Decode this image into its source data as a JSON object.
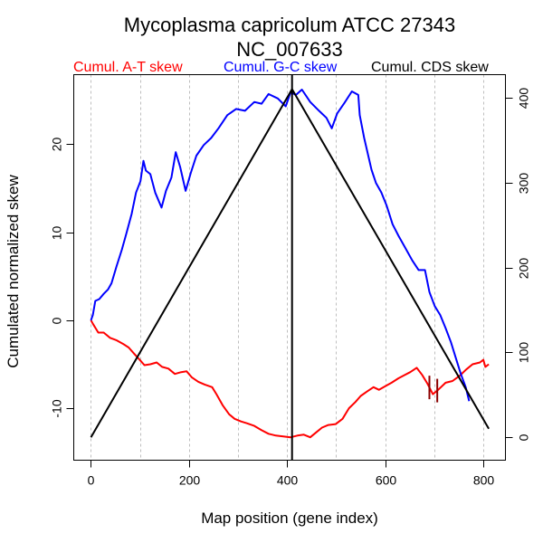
{
  "chart_data": {
    "type": "line",
    "title": "Mycoplasma capricolum ATCC 27343",
    "subtitle": "NC_007633",
    "xlabel": "Map position (gene index)",
    "ylabel": "Cumulated normalized skew",
    "xlim": [
      -35,
      845
    ],
    "ylim": [
      -15.9,
      27.9
    ],
    "y2lim": [
      -27,
      427
    ],
    "x_ticks": [
      0,
      200,
      400,
      600,
      800
    ],
    "y_ticks": [
      -10,
      0,
      10,
      20
    ],
    "y2_ticks": [
      0,
      100,
      200,
      300,
      400
    ],
    "x_grid": [
      0,
      100,
      200,
      300,
      400,
      500,
      600,
      700,
      800
    ],
    "grid": "vertical dotted",
    "legend": [
      "Cumul. A-T skew",
      "Cumul. G-C skew",
      "Cumul. CDS skew"
    ],
    "legend_position": "top",
    "colors": {
      "at": "#ff0000",
      "gc": "#0000ff",
      "cds": "#000000",
      "marker": "#8b0000",
      "grid": "#bebebe"
    },
    "vline_x": 410,
    "markers_x": [
      690,
      706
    ],
    "series": [
      {
        "name": "Cumul. A-T skew",
        "axis": "left",
        "x": [
          0,
          4,
          15,
          26,
          39,
          53,
          66,
          77,
          88,
          98,
          109,
          121,
          134,
          145,
          158,
          171,
          184,
          195,
          206,
          219,
          232,
          247,
          256,
          269,
          282,
          293,
          306,
          318,
          333,
          348,
          362,
          377,
          392,
          407,
          421,
          434,
          447,
          458,
          471,
          484,
          499,
          513,
          526,
          539,
          550,
          563,
          576,
          587,
          600,
          613,
          627,
          640,
          651,
          664,
          675,
          686,
          697,
          708,
          723,
          737,
          752,
          765,
          778,
          793,
          800,
          804,
          811
        ],
        "y": [
          0,
          -0.4,
          -1.4,
          -1.4,
          -2,
          -2.3,
          -2.7,
          -3.1,
          -3.8,
          -4.4,
          -5.1,
          -5,
          -4.8,
          -5.3,
          -5.5,
          -6.1,
          -5.9,
          -5.8,
          -6.5,
          -7,
          -7.3,
          -7.6,
          -8.4,
          -9.7,
          -10.7,
          -11.2,
          -11.5,
          -11.7,
          -12,
          -12.5,
          -12.9,
          -13.1,
          -13.2,
          -13.3,
          -13.1,
          -13,
          -13.3,
          -12.8,
          -12.2,
          -11.9,
          -11.8,
          -11.2,
          -10,
          -9.3,
          -8.6,
          -8.1,
          -7.6,
          -7.9,
          -7.5,
          -7.1,
          -6.6,
          -6.2,
          -5.9,
          -5.4,
          -6.2,
          -7.2,
          -8.4,
          -7.9,
          -7.1,
          -6.9,
          -6.3,
          -5.6,
          -5,
          -4.8,
          -4.5,
          -5.3,
          -5
        ]
      },
      {
        "name": "Cumul. G-C skew",
        "axis": "left",
        "x": [
          0,
          4,
          9,
          17,
          26,
          35,
          42,
          52,
          63,
          72,
          83,
          92,
          101,
          107,
          112,
          121,
          131,
          144,
          153,
          164,
          173,
          182,
          193,
          204,
          215,
          230,
          245,
          260,
          278,
          296,
          314,
          333,
          348,
          362,
          381,
          397,
          407,
          418,
          430,
          447,
          465,
          480,
          491,
          502,
          517,
          532,
          545,
          548,
          557,
          572,
          581,
          592,
          603,
          615,
          627,
          640,
          655,
          668,
          681,
          690,
          701,
          712,
          723,
          734,
          745,
          754,
          764,
          771
        ],
        "y": [
          0,
          0.6,
          2.2,
          2.4,
          3,
          3.5,
          4.2,
          6.1,
          8,
          9.8,
          12.1,
          14.5,
          15.8,
          18.1,
          17,
          16.6,
          14.5,
          12.8,
          14.7,
          16.2,
          19.1,
          17.4,
          14.7,
          16.8,
          18.7,
          19.9,
          20.7,
          21.8,
          23.3,
          24,
          23.8,
          24.8,
          24.6,
          25.7,
          25.2,
          24.3,
          25.9,
          25.6,
          26.2,
          24.8,
          23.8,
          23,
          21.8,
          23.5,
          24.7,
          26,
          25.6,
          23.3,
          20.7,
          17.1,
          15.6,
          14.5,
          13,
          10.9,
          9.6,
          8.3,
          6.8,
          5.7,
          5.7,
          3.2,
          1.6,
          0.6,
          -0.9,
          -2.5,
          -4.5,
          -6.1,
          -7.6,
          -9.2
        ]
      },
      {
        "name": "Cumul. CDS skew",
        "axis": "right",
        "x": [
          0,
          410,
          811
        ],
        "y": [
          0,
          410,
          10
        ]
      }
    ]
  }
}
